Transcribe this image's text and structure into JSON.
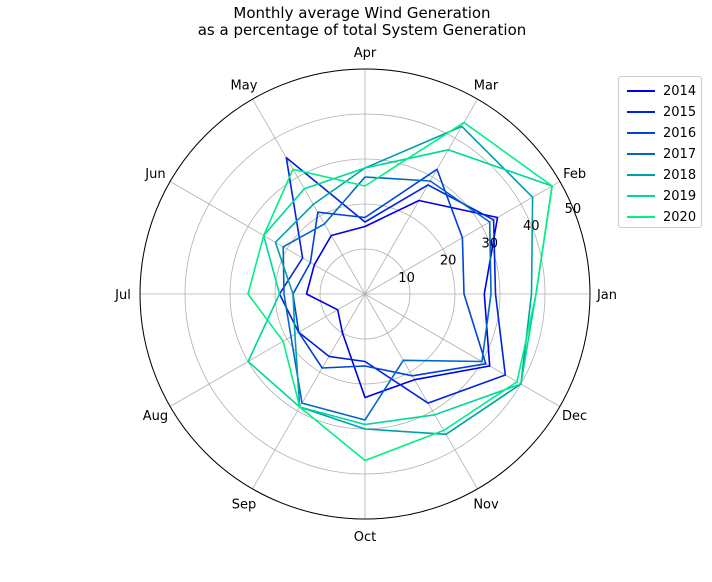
{
  "chart_data": {
    "type": "radar",
    "title": "Monthly average Wind Generation",
    "subtitle": "as a percentage of total System Generation",
    "categories": [
      "Jan",
      "Feb",
      "Mar",
      "Apr",
      "May",
      "Jun",
      "Jul",
      "Aug",
      "Sep",
      "Oct",
      "Nov",
      "Dec"
    ],
    "radial_ticks": [
      10,
      20,
      30,
      40,
      50
    ],
    "rlim": [
      0,
      50
    ],
    "grid": true,
    "legend_position": "upper-right-outside",
    "series": [
      {
        "name": "2014",
        "color": "#0000e6",
        "values": [
          26.5,
          34,
          24,
          15,
          15,
          13,
          13,
          7,
          10,
          23,
          22,
          32
        ]
      },
      {
        "name": "2015",
        "color": "#0022e0",
        "values": [
          29,
          33,
          28,
          16,
          35,
          16,
          19,
          17,
          16,
          15,
          28,
          36
        ]
      },
      {
        "name": "2016",
        "color": "#0044d8",
        "values": [
          22,
          25,
          32,
          17,
          21,
          14,
          16,
          17,
          19,
          16,
          21,
          31
        ]
      },
      {
        "name": "2017",
        "color": "#0066c8",
        "values": [
          28,
          32,
          29,
          26,
          18,
          21,
          18,
          19,
          28,
          28,
          17,
          30
        ]
      },
      {
        "name": "2018",
        "color": "#00a0a8",
        "values": [
          37,
          43,
          43,
          28,
          23,
          23,
          16,
          18,
          29,
          30,
          36,
          40
        ]
      },
      {
        "name": "2019",
        "color": "#00d898",
        "values": [
          38,
          48,
          37,
          28,
          27,
          26,
          19,
          30,
          29,
          29,
          31,
          40
        ]
      },
      {
        "name": "2020",
        "color": "#00f084",
        "values": [
          38,
          48,
          44,
          24,
          32,
          26,
          26,
          21,
          29,
          37,
          35,
          39
        ]
      }
    ]
  }
}
